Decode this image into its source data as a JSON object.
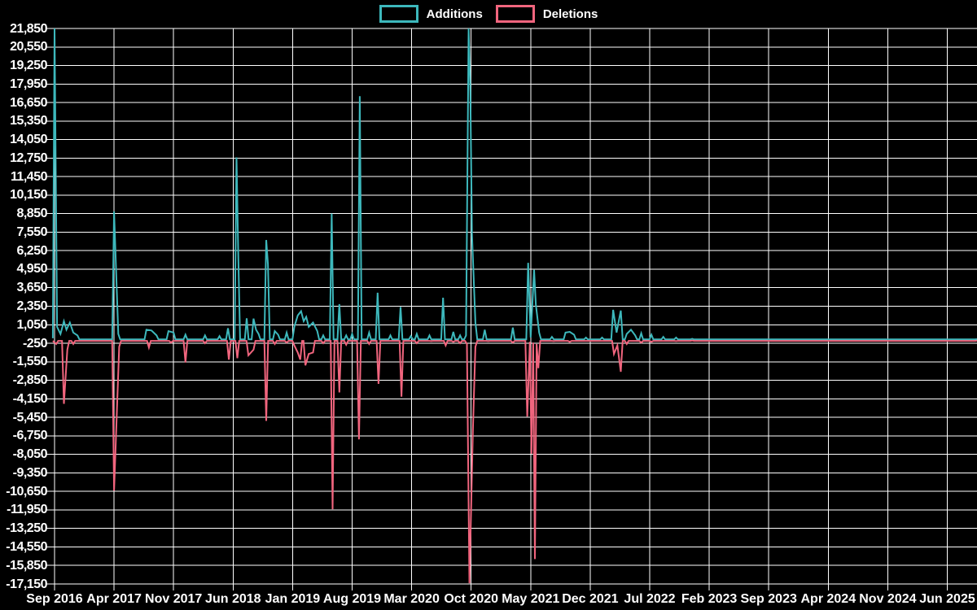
{
  "app": {
    "background_color": "#000000",
    "grid_color": "#ffffff",
    "text_color": "#ffffff"
  },
  "legend": {
    "items": [
      {
        "label": "Additions",
        "color": "#3db8bc"
      },
      {
        "label": "Deletions",
        "color": "#f1657e"
      }
    ]
  },
  "chart_data": {
    "type": "line",
    "title": "",
    "xlabel": "",
    "ylabel": "",
    "grid": true,
    "legend_position": "top-center",
    "x_unit": "months since Sep 2016 (x ticks every 7 months)",
    "x_tick_labels": [
      "Sep 2016",
      "Apr 2017",
      "Nov 2017",
      "Jun 2018",
      "Jan 2019",
      "Aug 2019",
      "Mar 2020",
      "Oct 2020",
      "May 2021",
      "Dec 2021",
      "Jul 2022",
      "Feb 2023",
      "Sep 2023",
      "Apr 2024",
      "Nov 2024",
      "Jun 2025"
    ],
    "x_tick_months": [
      0,
      7,
      14,
      21,
      28,
      35,
      42,
      49,
      56,
      63,
      70,
      77,
      84,
      91,
      98,
      105
    ],
    "xlim_months": [
      0,
      108.5
    ],
    "y_tick_labels": [
      "21,850",
      "20,550",
      "19,250",
      "17,950",
      "16,650",
      "15,350",
      "14,050",
      "12,750",
      "11,450",
      "10,150",
      "8,850",
      "7,550",
      "6,250",
      "4,950",
      "3,650",
      "2,350",
      "1,050",
      "-250",
      "-1,550",
      "-2,850",
      "-4,150",
      "-5,450",
      "-6,750",
      "-8,050",
      "-9,350",
      "-10,650",
      "-11,950",
      "-13,250",
      "-14,550",
      "-15,850",
      "-17,150"
    ],
    "ylim": [
      -17150,
      21850
    ],
    "y_step": 1300,
    "series": [
      {
        "name": "Additions",
        "color": "#3db8bc",
        "baseline": 20,
        "points": [
          [
            -0.2,
            100
          ],
          [
            0,
            21850
          ],
          [
            0.3,
            900
          ],
          [
            0.7,
            400
          ],
          [
            1.1,
            1300
          ],
          [
            1.4,
            700
          ],
          [
            1.8,
            1200
          ],
          [
            2.2,
            500
          ],
          [
            2.7,
            300
          ],
          [
            7.0,
            9000
          ],
          [
            7.5,
            400
          ],
          [
            10.8,
            700
          ],
          [
            11.4,
            650
          ],
          [
            12.0,
            300
          ],
          [
            13.4,
            600
          ],
          [
            14.0,
            500
          ],
          [
            15.4,
            350
          ],
          [
            17.7,
            300
          ],
          [
            19.4,
            250
          ],
          [
            20.4,
            800
          ],
          [
            21.4,
            12800
          ],
          [
            21.6,
            6100
          ],
          [
            22.6,
            1500
          ],
          [
            23.4,
            1480
          ],
          [
            23.7,
            700
          ],
          [
            24.0,
            400
          ],
          [
            24.9,
            7000
          ],
          [
            25.1,
            5300
          ],
          [
            25.9,
            600
          ],
          [
            26.3,
            350
          ],
          [
            27.3,
            500
          ],
          [
            28.2,
            900
          ],
          [
            28.6,
            1700
          ],
          [
            29.0,
            2000
          ],
          [
            29.3,
            1300
          ],
          [
            29.6,
            1600
          ],
          [
            29.9,
            900
          ],
          [
            30.4,
            1200
          ],
          [
            30.9,
            600
          ],
          [
            31.6,
            300
          ],
          [
            32.6,
            8850
          ],
          [
            33.5,
            2500
          ],
          [
            34.3,
            300
          ],
          [
            35.0,
            400
          ],
          [
            35.9,
            17100
          ],
          [
            37.0,
            500
          ],
          [
            38.0,
            3300
          ],
          [
            39.5,
            300
          ],
          [
            40.7,
            2300
          ],
          [
            41.9,
            250
          ],
          [
            42.6,
            400
          ],
          [
            44.1,
            300
          ],
          [
            45.7,
            2950
          ],
          [
            46.9,
            550
          ],
          [
            47.7,
            300
          ],
          [
            48.4,
            300
          ],
          [
            48.7,
            21850
          ],
          [
            48.9,
            17400
          ],
          [
            49.1,
            7400
          ],
          [
            49.5,
            1230
          ],
          [
            50.6,
            700
          ],
          [
            53.9,
            850
          ],
          [
            55.7,
            5400
          ],
          [
            56.0,
            150
          ],
          [
            56.4,
            4900
          ],
          [
            56.6,
            2500
          ],
          [
            57.0,
            500
          ],
          [
            58.5,
            200
          ],
          [
            60.1,
            500
          ],
          [
            60.6,
            550
          ],
          [
            61.1,
            350
          ],
          [
            62.5,
            150
          ],
          [
            64.4,
            150
          ],
          [
            65.7,
            2100
          ],
          [
            66.1,
            500
          ],
          [
            66.6,
            2050
          ],
          [
            67.3,
            400
          ],
          [
            67.8,
            700
          ],
          [
            68.3,
            300
          ],
          [
            69.0,
            450
          ],
          [
            70.2,
            350
          ],
          [
            71.6,
            200
          ],
          [
            73.1,
            150
          ],
          [
            75.0,
            60
          ],
          [
            108.5,
            40
          ]
        ]
      },
      {
        "name": "Deletions",
        "color": "#f1657e",
        "baseline": -80,
        "points": [
          [
            -0.2,
            -80
          ],
          [
            0.2,
            -300
          ],
          [
            1.1,
            -4500
          ],
          [
            1.5,
            -700
          ],
          [
            2.2,
            -300
          ],
          [
            7.0,
            -10600
          ],
          [
            7.6,
            -500
          ],
          [
            11.1,
            -550
          ],
          [
            13.7,
            -200
          ],
          [
            15.4,
            -1600
          ],
          [
            17.7,
            -250
          ],
          [
            20.5,
            -1400
          ],
          [
            21.5,
            -1300
          ],
          [
            22.8,
            -1100
          ],
          [
            23.4,
            -700
          ],
          [
            24.9,
            -5700
          ],
          [
            25.9,
            -300
          ],
          [
            27.3,
            -200
          ],
          [
            28.2,
            -400
          ],
          [
            28.6,
            -900
          ],
          [
            28.9,
            -1400
          ],
          [
            29.5,
            -1800
          ],
          [
            29.9,
            -1000
          ],
          [
            30.4,
            -900
          ],
          [
            31.6,
            -250
          ],
          [
            32.7,
            -11900
          ],
          [
            33.5,
            -3700
          ],
          [
            34.3,
            -350
          ],
          [
            35.8,
            -7000
          ],
          [
            37.0,
            -300
          ],
          [
            38.1,
            -3100
          ],
          [
            40.8,
            -4000
          ],
          [
            42.6,
            -250
          ],
          [
            44.3,
            -100
          ],
          [
            46.0,
            -400
          ],
          [
            46.9,
            -150
          ],
          [
            47.7,
            -250
          ],
          [
            48.5,
            -300
          ],
          [
            48.8,
            -17100
          ],
          [
            49.2,
            -6400
          ],
          [
            49.5,
            -500
          ],
          [
            51.0,
            -100
          ],
          [
            53.9,
            -200
          ],
          [
            55.6,
            -5400
          ],
          [
            55.9,
            -150
          ],
          [
            56.1,
            -8000
          ],
          [
            56.3,
            -200
          ],
          [
            56.5,
            -15400
          ],
          [
            56.7,
            -300
          ],
          [
            56.9,
            -2000
          ],
          [
            58.7,
            -100
          ],
          [
            60.6,
            -150
          ],
          [
            65.8,
            -1000
          ],
          [
            66.2,
            -400
          ],
          [
            66.6,
            -2250
          ],
          [
            67.3,
            -300
          ],
          [
            69.0,
            -200
          ],
          [
            70.2,
            -150
          ],
          [
            73.1,
            -100
          ],
          [
            75.0,
            -60
          ],
          [
            108.5,
            -60
          ]
        ]
      }
    ]
  }
}
